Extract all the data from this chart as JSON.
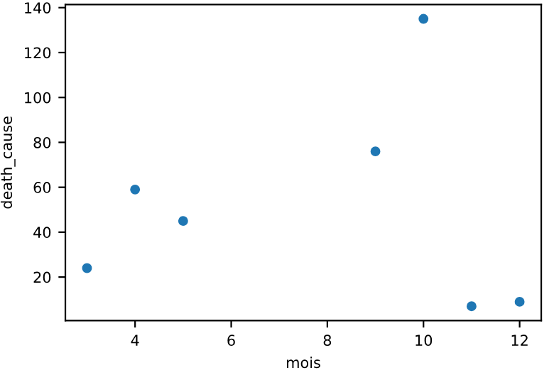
{
  "chart_data": {
    "type": "scatter",
    "xlabel": "mois",
    "ylabel": "death_cause",
    "x": [
      3,
      4,
      5,
      9,
      10,
      11,
      12
    ],
    "values": [
      24,
      59,
      45,
      76,
      135,
      7,
      9
    ],
    "color": "#1f77b4",
    "marker": "circle",
    "xlim": [
      2.55,
      12.45
    ],
    "xticks": [
      4,
      6,
      8,
      10,
      12
    ],
    "ylim": [
      0.6,
      141.4
    ],
    "yticks": [
      20,
      40,
      60,
      80,
      100,
      120,
      140
    ],
    "grid": false
  }
}
